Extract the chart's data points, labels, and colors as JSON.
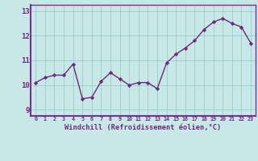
{
  "x": [
    0,
    1,
    2,
    3,
    4,
    5,
    6,
    7,
    8,
    9,
    10,
    11,
    12,
    13,
    14,
    15,
    16,
    17,
    18,
    19,
    20,
    21,
    22,
    23
  ],
  "y": [
    10.1,
    10.3,
    10.4,
    10.4,
    10.85,
    9.45,
    9.5,
    10.15,
    10.5,
    10.25,
    10.0,
    10.1,
    10.1,
    9.85,
    10.9,
    11.25,
    11.5,
    11.8,
    12.25,
    12.55,
    12.7,
    12.5,
    12.35,
    11.7
  ],
  "line_color": "#6B2A7B",
  "marker": "D",
  "markersize": 2.2,
  "linewidth": 1.0,
  "bg_color": "#c8e8e8",
  "plot_bg_color": "#c8e8e8",
  "grid_color": "#99cccc",
  "xlabel": "Windchill (Refroidissement éolien,°C)",
  "xlabel_color": "#6B2A7B",
  "tick_color": "#6B2A7B",
  "axis_bar_color": "#7B3090",
  "ylim": [
    8.75,
    13.25
  ],
  "xlim": [
    -0.5,
    23.5
  ],
  "yticks": [
    9,
    10,
    11,
    12,
    13
  ],
  "xtick_labels": [
    "0",
    "1",
    "2",
    "3",
    "4",
    "5",
    "6",
    "7",
    "8",
    "9",
    "10",
    "11",
    "12",
    "13",
    "14",
    "15",
    "16",
    "17",
    "18",
    "19",
    "20",
    "21",
    "22",
    "23"
  ]
}
